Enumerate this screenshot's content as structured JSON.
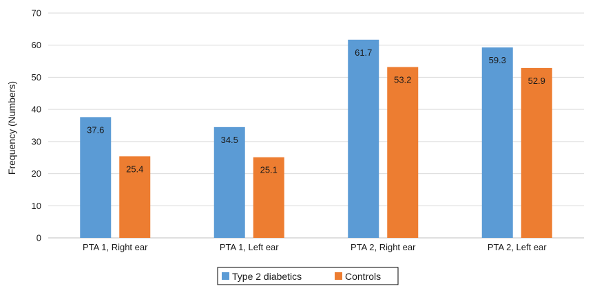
{
  "chart_data": {
    "type": "bar",
    "categories": [
      "PTA 1, Right ear",
      "PTA 1, Left ear",
      "PTA 2, Right ear",
      "PTA 2, Left ear"
    ],
    "series": [
      {
        "name": "Type 2 diabetics",
        "values": [
          37.6,
          34.5,
          61.7,
          59.3
        ],
        "color": "#5b9bd5"
      },
      {
        "name": "Controls",
        "values": [
          25.4,
          25.1,
          53.2,
          52.9
        ],
        "color": "#ed7d31"
      }
    ],
    "title": "",
    "xlabel": "",
    "ylabel": "Frequency (Numbers)",
    "ylim": [
      0,
      70
    ],
    "yticks": [
      0,
      10,
      20,
      30,
      40,
      50,
      60,
      70
    ],
    "grid": true,
    "legend": "bottom"
  }
}
